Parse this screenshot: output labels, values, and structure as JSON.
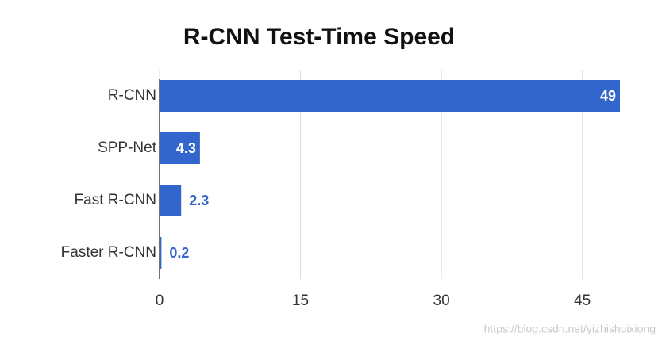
{
  "chart_data": {
    "type": "bar",
    "orientation": "horizontal",
    "title": "R-CNN Test-Time Speed",
    "categories": [
      "R-CNN",
      "SPP-Net",
      "Fast R-CNN",
      "Faster R-CNN"
    ],
    "values": [
      49,
      4.3,
      2.3,
      0.2
    ],
    "color": "#3366cc",
    "xlim": [
      0,
      49
    ],
    "xticks": [
      0,
      15,
      30,
      45
    ],
    "grid": true,
    "watermark": "https://blog.csdn.net/yizhishuixiong"
  }
}
